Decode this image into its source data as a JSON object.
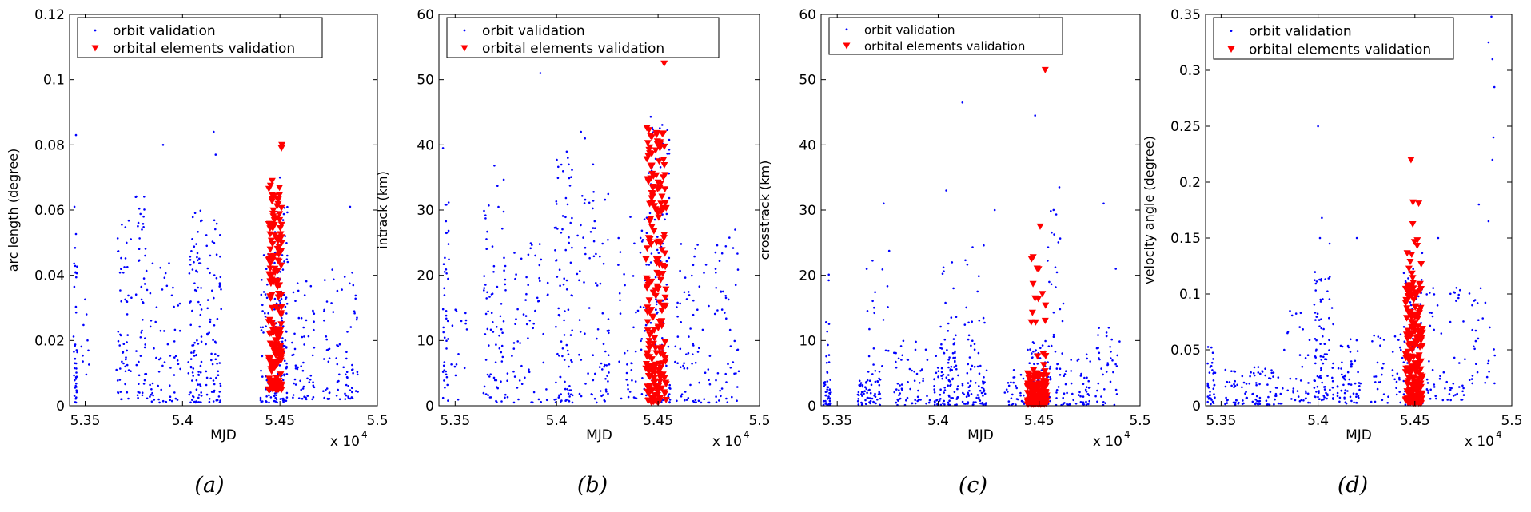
{
  "chart_data": [
    {
      "type": "scatter",
      "ylabel": "arc length (degree)",
      "xlabel": "MJD",
      "multiplier": "x 10",
      "multiplier_exp": "4",
      "caption": "(a)",
      "xlim": [
        53420,
        55000
      ],
      "ylim": [
        0,
        0.12
      ],
      "xticks": [
        53500,
        54000,
        54500,
        55000
      ],
      "xtick_labels": [
        "5.35",
        "5.4",
        "5.45",
        "5.5"
      ],
      "yticks": [
        0,
        0.02,
        0.04,
        0.06,
        0.08,
        0.1,
        0.12
      ],
      "ytick_labels": [
        "0",
        "0.02",
        "0.04",
        "0.06",
        "0.08",
        "0.1",
        "0.12"
      ],
      "legend": [
        "orbit validation",
        "orbital elements validation"
      ],
      "series": [
        {
          "name": "orbit validation",
          "marker": "dot",
          "color": "#0000ff",
          "clusters": [
            {
              "x": [
                53440,
                53460
              ],
              "y": [
                0.001,
                0.053
              ],
              "n": 40
            },
            {
              "x": [
                53480,
                53520
              ],
              "y": [
                0.002,
                0.035
              ],
              "n": 10
            },
            {
              "x": [
                53660,
                53740
              ],
              "y": [
                0.002,
                0.057
              ],
              "n": 55
            },
            {
              "x": [
                53760,
                53820
              ],
              "y": [
                0.002,
                0.065
              ],
              "n": 50
            },
            {
              "x": [
                53830,
                53990
              ],
              "y": [
                0.001,
                0.045
              ],
              "n": 60
            },
            {
              "x": [
                54030,
                54100
              ],
              "y": [
                0.001,
                0.06
              ],
              "n": 90
            },
            {
              "x": [
                54120,
                54200
              ],
              "y": [
                0.001,
                0.06
              ],
              "n": 70
            },
            {
              "x": [
                54400,
                54460
              ],
              "y": [
                0.001,
                0.055
              ],
              "n": 45
            },
            {
              "x": [
                54470,
                54540
              ],
              "y": [
                0.001,
                0.065
              ],
              "n": 130
            },
            {
              "x": [
                54560,
                54680
              ],
              "y": [
                0.002,
                0.04
              ],
              "n": 60
            },
            {
              "x": [
                54720,
                54900
              ],
              "y": [
                0.002,
                0.042
              ],
              "n": 80
            }
          ],
          "points": [
            {
              "x": 53453,
              "y": 0.083
            },
            {
              "x": 53445,
              "y": 0.061
            },
            {
              "x": 53900,
              "y": 0.08
            },
            {
              "x": 54160,
              "y": 0.084
            },
            {
              "x": 54170,
              "y": 0.077
            },
            {
              "x": 54860,
              "y": 0.061
            },
            {
              "x": 54500,
              "y": 0.07
            },
            {
              "x": 53760,
              "y": 0.064
            }
          ]
        },
        {
          "name": "orbital elements validation",
          "marker": "triangle-down",
          "color": "#ff0000",
          "clusters": [
            {
              "x": [
                54440,
                54510
              ],
              "y": [
                0.005,
                0.068
              ],
              "n": 190
            }
          ],
          "points": [
            {
              "x": 54510,
              "y": 0.08
            },
            {
              "x": 54508,
              "y": 0.079
            },
            {
              "x": 54460,
              "y": 0.069
            }
          ]
        }
      ]
    },
    {
      "type": "scatter",
      "ylabel": "intrack (km)",
      "xlabel": "MJD",
      "multiplier": "x 10",
      "multiplier_exp": "4",
      "caption": "(b)",
      "xlim": [
        53420,
        55000
      ],
      "ylim": [
        0,
        60
      ],
      "xticks": [
        53500,
        54000,
        54500,
        55000
      ],
      "xtick_labels": [
        "5.35",
        "5.4",
        "5.45",
        "5.5"
      ],
      "yticks": [
        0,
        10,
        20,
        30,
        40,
        50,
        60
      ],
      "ytick_labels": [
        "0",
        "10",
        "20",
        "30",
        "40",
        "50",
        "60"
      ],
      "legend": [
        "orbit validation",
        "orbital elements validation"
      ],
      "series": [
        {
          "name": "orbit validation",
          "marker": "dot",
          "color": "#0000ff",
          "clusters": [
            {
              "x": [
                53440,
                53470
              ],
              "y": [
                0.5,
                34
              ],
              "n": 40
            },
            {
              "x": [
                53480,
                53560
              ],
              "y": [
                0.5,
                18
              ],
              "n": 15
            },
            {
              "x": [
                53640,
                53760
              ],
              "y": [
                0.5,
                37
              ],
              "n": 80
            },
            {
              "x": [
                53780,
                53960
              ],
              "y": [
                0.5,
                25
              ],
              "n": 60
            },
            {
              "x": [
                53990,
                54080
              ],
              "y": [
                0.5,
                39
              ],
              "n": 90
            },
            {
              "x": [
                54100,
                54260
              ],
              "y": [
                0.5,
                33
              ],
              "n": 80
            },
            {
              "x": [
                54300,
                54440
              ],
              "y": [
                0.5,
                30
              ],
              "n": 50
            },
            {
              "x": [
                54440,
                54560
              ],
              "y": [
                0.5,
                45
              ],
              "n": 120
            },
            {
              "x": [
                54580,
                54760
              ],
              "y": [
                0.5,
                25
              ],
              "n": 70
            },
            {
              "x": [
                54780,
                54900
              ],
              "y": [
                0.5,
                27
              ],
              "n": 50
            }
          ],
          "points": [
            {
              "x": 53440,
              "y": 39.5
            },
            {
              "x": 53920,
              "y": 51
            },
            {
              "x": 54120,
              "y": 42
            },
            {
              "x": 54140,
              "y": 41
            },
            {
              "x": 54060,
              "y": 37
            },
            {
              "x": 54180,
              "y": 37
            },
            {
              "x": 54880,
              "y": 27
            }
          ]
        },
        {
          "name": "orbital elements validation",
          "marker": "triangle-down",
          "color": "#ff0000",
          "clusters": [
            {
              "x": [
                54440,
                54540
              ],
              "y": [
                0.5,
                42
              ],
              "n": 220
            }
          ],
          "points": [
            {
              "x": 54530,
              "y": 52.5
            },
            {
              "x": 54445,
              "y": 42.6
            },
            {
              "x": 54455,
              "y": 42.3
            }
          ]
        }
      ]
    },
    {
      "type": "scatter",
      "ylabel": "crosstrack (km)",
      "xlabel": "MJD",
      "multiplier": "x 10",
      "multiplier_exp": "4",
      "caption": "(c)",
      "xlim": [
        53420,
        55000
      ],
      "ylim": [
        0,
        60
      ],
      "xticks": [
        53500,
        54000,
        54500,
        55000
      ],
      "xtick_labels": [
        "5.35",
        "5.4",
        "5.45",
        "5.5"
      ],
      "yticks": [
        0,
        10,
        20,
        30,
        40,
        50,
        60
      ],
      "ytick_labels": [
        "0",
        "10",
        "20",
        "30",
        "40",
        "50",
        "60"
      ],
      "legend": [
        "orbit validation",
        "orbital elements validation"
      ],
      "series": [
        {
          "name": "orbit validation",
          "marker": "dot",
          "color": "#0000ff",
          "clusters": [
            {
              "x": [
                53430,
                53470
              ],
              "y": [
                0.1,
                4
              ],
              "n": 40
            },
            {
              "x": [
                53440,
                53460
              ],
              "y": [
                5,
                26
              ],
              "n": 12
            },
            {
              "x": [
                53600,
                53720
              ],
              "y": [
                0.1,
                4
              ],
              "n": 60
            },
            {
              "x": [
                53640,
                53760
              ],
              "y": [
                4,
                26
              ],
              "n": 25
            },
            {
              "x": [
                53780,
                53960
              ],
              "y": [
                0.1,
                10
              ],
              "n": 60
            },
            {
              "x": [
                53980,
                54100
              ],
              "y": [
                0.1,
                8
              ],
              "n": 80
            },
            {
              "x": [
                54010,
                54090
              ],
              "y": [
                8,
                22
              ],
              "n": 25
            },
            {
              "x": [
                54120,
                54240
              ],
              "y": [
                0.1,
                6
              ],
              "n": 60
            },
            {
              "x": [
                54130,
                54230
              ],
              "y": [
                6,
                25
              ],
              "n": 25
            },
            {
              "x": [
                54330,
                54440
              ],
              "y": [
                0.1,
                6
              ],
              "n": 30
            },
            {
              "x": [
                54440,
                54560
              ],
              "y": [
                0.1,
                10
              ],
              "n": 90
            },
            {
              "x": [
                54520,
                54620
              ],
              "y": [
                8,
                32
              ],
              "n": 25
            },
            {
              "x": [
                54580,
                54760
              ],
              "y": [
                0.1,
                8
              ],
              "n": 60
            },
            {
              "x": [
                54780,
                54900
              ],
              "y": [
                0.1,
                12
              ],
              "n": 40
            }
          ],
          "points": [
            {
              "x": 54120,
              "y": 46.5
            },
            {
              "x": 54480,
              "y": 44.5
            },
            {
              "x": 54040,
              "y": 33
            },
            {
              "x": 54280,
              "y": 30
            },
            {
              "x": 54600,
              "y": 33.5
            },
            {
              "x": 53730,
              "y": 31
            },
            {
              "x": 54820,
              "y": 31
            },
            {
              "x": 54880,
              "y": 21
            }
          ]
        },
        {
          "name": "orbital elements validation",
          "marker": "triangle-down",
          "color": "#ff0000",
          "clusters": [
            {
              "x": [
                54440,
                54540
              ],
              "y": [
                0.2,
                5
              ],
              "n": 130
            },
            {
              "x": [
                54460,
                54540
              ],
              "y": [
                5,
                23
              ],
              "n": 20
            }
          ],
          "points": [
            {
              "x": 54530,
              "y": 51.5
            },
            {
              "x": 54505,
              "y": 27.5
            },
            {
              "x": 54470,
              "y": 22.8
            }
          ]
        }
      ]
    },
    {
      "type": "scatter",
      "ylabel": "velocity angle (degree)",
      "xlabel": "MJD",
      "multiplier": "x 10",
      "multiplier_exp": "4",
      "caption": "(d)",
      "xlim": [
        53420,
        55000
      ],
      "ylim": [
        0,
        0.35
      ],
      "xticks": [
        53500,
        54000,
        54500,
        55000
      ],
      "xtick_labels": [
        "5.35",
        "5.4",
        "5.45",
        "5.5"
      ],
      "yticks": [
        0,
        0.05,
        0.1,
        0.15,
        0.2,
        0.25,
        0.3,
        0.35
      ],
      "ytick_labels": [
        "0",
        "0.05",
        "0.1",
        "0.15",
        "0.2",
        "0.25",
        "0.3",
        "0.35"
      ],
      "legend": [
        "orbit validation",
        "orbital elements validation"
      ],
      "series": [
        {
          "name": "orbit validation",
          "marker": "dot",
          "color": "#0000ff",
          "clusters": [
            {
              "x": [
                53430,
                53470
              ],
              "y": [
                0.001,
                0.055
              ],
              "n": 35
            },
            {
              "x": [
                53520,
                53800
              ],
              "y": [
                0.001,
                0.035
              ],
              "n": 90
            },
            {
              "x": [
                53800,
                53960
              ],
              "y": [
                0.002,
                0.085
              ],
              "n": 40
            },
            {
              "x": [
                53980,
                54080
              ],
              "y": [
                0.005,
                0.12
              ],
              "n": 90
            },
            {
              "x": [
                54100,
                54220
              ],
              "y": [
                0.002,
                0.06
              ],
              "n": 60
            },
            {
              "x": [
                54260,
                54440
              ],
              "y": [
                0.002,
                0.065
              ],
              "n": 40
            },
            {
              "x": [
                54440,
                54540
              ],
              "y": [
                0.001,
                0.14
              ],
              "n": 80
            },
            {
              "x": [
                54560,
                54760
              ],
              "y": [
                0.005,
                0.11
              ],
              "n": 60
            },
            {
              "x": [
                54780,
                54920
              ],
              "y": [
                0.02,
                0.11
              ],
              "n": 30
            }
          ],
          "points": [
            {
              "x": 54000,
              "y": 0.25
            },
            {
              "x": 54020,
              "y": 0.168
            },
            {
              "x": 54010,
              "y": 0.15
            },
            {
              "x": 54060,
              "y": 0.145
            },
            {
              "x": 54880,
              "y": 0.325
            },
            {
              "x": 54895,
              "y": 0.348
            },
            {
              "x": 54900,
              "y": 0.31
            },
            {
              "x": 54910,
              "y": 0.285
            },
            {
              "x": 54905,
              "y": 0.24
            },
            {
              "x": 54900,
              "y": 0.22
            },
            {
              "x": 54880,
              "y": 0.165
            },
            {
              "x": 54830,
              "y": 0.18
            },
            {
              "x": 54620,
              "y": 0.15
            },
            {
              "x": 54200,
              "y": 0.15
            }
          ]
        },
        {
          "name": "orbital elements validation",
          "marker": "triangle-down",
          "color": "#ff0000",
          "clusters": [
            {
              "x": [
                54450,
                54540
              ],
              "y": [
                0.002,
                0.11
              ],
              "n": 200
            },
            {
              "x": [
                54460,
                54540
              ],
              "y": [
                0.11,
                0.17
              ],
              "n": 12
            }
          ],
          "points": [
            {
              "x": 54480,
              "y": 0.22
            },
            {
              "x": 54490,
              "y": 0.182
            },
            {
              "x": 54520,
              "y": 0.181
            }
          ]
        }
      ]
    }
  ]
}
